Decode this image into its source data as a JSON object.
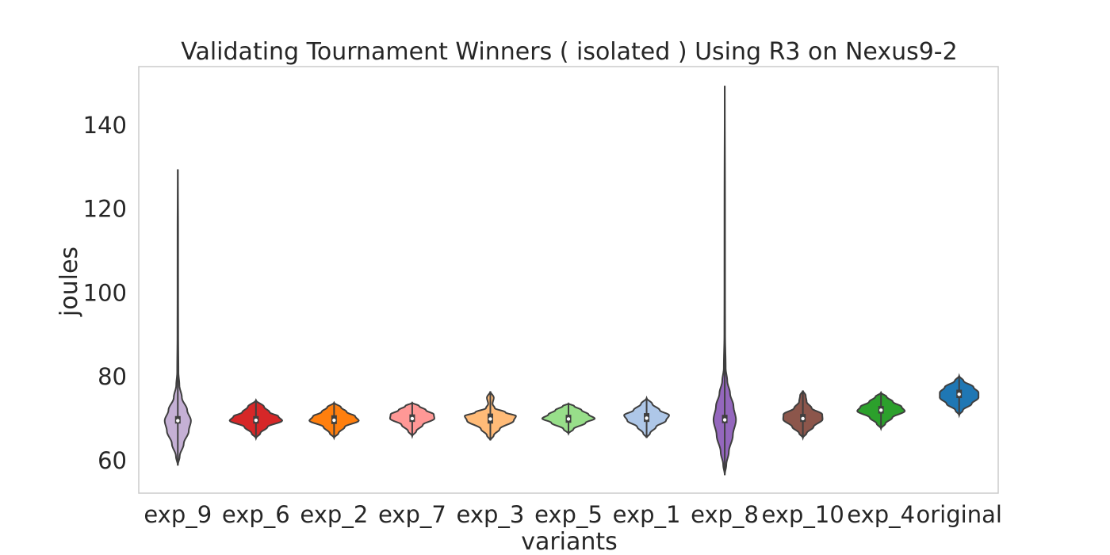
{
  "chart_data": {
    "type": "violin",
    "title": "Validating Tournament Winners ( isolated ) Using R3 on Nexus9-2",
    "xlabel": "variants",
    "ylabel": "joules",
    "ylim": [
      52.2,
      154.0
    ],
    "yticks": [
      60,
      80,
      100,
      120,
      140
    ],
    "grid": false,
    "series": [
      {
        "category": "exp_9",
        "color": "#c5b0d5",
        "min": 58.8,
        "q1": 68.8,
        "median": 69.5,
        "q3": 70.6,
        "max": 129.5,
        "density": [
          [
            58.8,
            0
          ],
          [
            61,
            0.06
          ],
          [
            64,
            0.19
          ],
          [
            67,
            0.35
          ],
          [
            69.5,
            0.42
          ],
          [
            72,
            0.3
          ],
          [
            75,
            0.13
          ],
          [
            78,
            0.05
          ],
          [
            81,
            0.02
          ],
          [
            90,
            0.012
          ],
          [
            100,
            0.01
          ],
          [
            115,
            0.009
          ],
          [
            129.5,
            0
          ]
        ]
      },
      {
        "category": "exp_6",
        "color": "#d62728",
        "min": 65.3,
        "q1": 68.8,
        "median": 69.6,
        "q3": 70.6,
        "max": 74.4,
        "density": [
          [
            65.3,
            0
          ],
          [
            66.5,
            0.14
          ],
          [
            68,
            0.37
          ],
          [
            69.5,
            0.84
          ],
          [
            70.5,
            0.72
          ],
          [
            71.5,
            0.44
          ],
          [
            72.8,
            0.26
          ],
          [
            74.4,
            0
          ]
        ]
      },
      {
        "category": "exp_2",
        "color": "#ff7f0e",
        "min": 65.4,
        "q1": 68.7,
        "median": 69.6,
        "q3": 70.8,
        "max": 73.8,
        "density": [
          [
            65.4,
            0
          ],
          [
            66.5,
            0.14
          ],
          [
            68,
            0.34
          ],
          [
            69.5,
            0.79
          ],
          [
            70.5,
            0.68
          ],
          [
            71.6,
            0.4
          ],
          [
            72.7,
            0.22
          ],
          [
            73.8,
            0
          ]
        ]
      },
      {
        "category": "exp_7",
        "color": "#ff9896",
        "min": 65.8,
        "q1": 69.2,
        "median": 70.0,
        "q3": 71.0,
        "max": 73.8,
        "density": [
          [
            65.8,
            0
          ],
          [
            67,
            0.13
          ],
          [
            68.5,
            0.34
          ],
          [
            70,
            0.71
          ],
          [
            71,
            0.69
          ],
          [
            72,
            0.44
          ],
          [
            73,
            0.22
          ],
          [
            73.8,
            0
          ]
        ]
      },
      {
        "category": "exp_3",
        "color": "#ffbb78",
        "min": 64.8,
        "q1": 68.8,
        "median": 69.9,
        "q3": 71.2,
        "max": 76.5,
        "density": [
          [
            64.8,
            0
          ],
          [
            66,
            0.11
          ],
          [
            67.5,
            0.3
          ],
          [
            69.5,
            0.75
          ],
          [
            70.6,
            0.82
          ],
          [
            71.5,
            0.48
          ],
          [
            72.5,
            0.14
          ],
          [
            73.5,
            0.07
          ],
          [
            75,
            0.11
          ],
          [
            76.5,
            0
          ]
        ]
      },
      {
        "category": "exp_5",
        "color": "#98df8a",
        "min": 66.4,
        "q1": 69.0,
        "median": 69.9,
        "q3": 70.9,
        "max": 73.6,
        "density": [
          [
            66.4,
            0
          ],
          [
            67.5,
            0.16
          ],
          [
            69,
            0.55
          ],
          [
            70,
            0.84
          ],
          [
            71,
            0.64
          ],
          [
            72,
            0.42
          ],
          [
            73,
            0.18
          ],
          [
            73.6,
            0
          ]
        ]
      },
      {
        "category": "exp_1",
        "color": "#aec7e8",
        "min": 65.4,
        "q1": 69.2,
        "median": 70.1,
        "q3": 71.3,
        "max": 74.9,
        "density": [
          [
            65.4,
            0
          ],
          [
            66.5,
            0.11
          ],
          [
            68,
            0.3
          ],
          [
            69.5,
            0.62
          ],
          [
            70.8,
            0.72
          ],
          [
            72,
            0.42
          ],
          [
            73.5,
            0.18
          ],
          [
            74.9,
            0
          ]
        ]
      },
      {
        "category": "exp_8",
        "color": "#9467bd",
        "min": 56.5,
        "q1": 68.9,
        "median": 69.7,
        "q3": 70.9,
        "max": 149.4,
        "density": [
          [
            56.5,
            0
          ],
          [
            59,
            0.05
          ],
          [
            62,
            0.13
          ],
          [
            66,
            0.26
          ],
          [
            69.7,
            0.36
          ],
          [
            73,
            0.28
          ],
          [
            76,
            0.17
          ],
          [
            79,
            0.08
          ],
          [
            82,
            0.03
          ],
          [
            90,
            0.012
          ],
          [
            100,
            0.01
          ],
          [
            120,
            0.009
          ],
          [
            149.4,
            0
          ]
        ]
      },
      {
        "category": "exp_10",
        "color": "#8c564b",
        "min": 65.4,
        "q1": 69.2,
        "median": 70.0,
        "q3": 71.1,
        "max": 76.7,
        "density": [
          [
            65.4,
            0
          ],
          [
            66.5,
            0.12
          ],
          [
            68,
            0.34
          ],
          [
            69.8,
            0.63
          ],
          [
            71,
            0.62
          ],
          [
            72.5,
            0.28
          ],
          [
            74,
            0.12
          ],
          [
            75.5,
            0.09
          ],
          [
            76.7,
            0
          ]
        ]
      },
      {
        "category": "exp_4",
        "color": "#2ca02c",
        "min": 67.6,
        "q1": 71.2,
        "median": 72.0,
        "q3": 73.0,
        "max": 76.2,
        "density": [
          [
            67.6,
            0
          ],
          [
            68.8,
            0.14
          ],
          [
            70.2,
            0.36
          ],
          [
            71.8,
            0.76
          ],
          [
            72.8,
            0.66
          ],
          [
            74,
            0.38
          ],
          [
            75.2,
            0.18
          ],
          [
            76.2,
            0
          ]
        ]
      },
      {
        "category": "original",
        "color": "#1f77b4",
        "min": 70.8,
        "q1": 74.9,
        "median": 75.8,
        "q3": 76.9,
        "max": 80.2,
        "density": [
          [
            70.8,
            0
          ],
          [
            72,
            0.12
          ],
          [
            73.5,
            0.4
          ],
          [
            75,
            0.62
          ],
          [
            76.2,
            0.62
          ],
          [
            77.5,
            0.46
          ],
          [
            79,
            0.14
          ],
          [
            80.2,
            0
          ]
        ]
      }
    ]
  }
}
